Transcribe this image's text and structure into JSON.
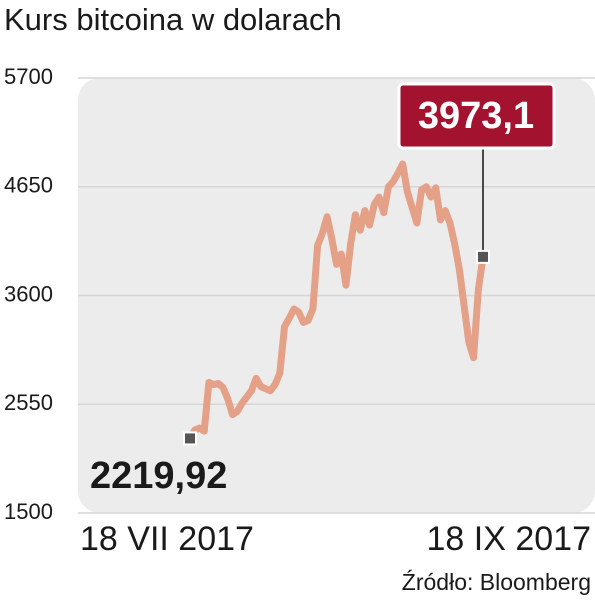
{
  "chart_data": {
    "type": "line",
    "title": "Kurs bitcoina w dolarach",
    "source": "Źródło: Bloomberg",
    "categories": [
      "18 VII 2017",
      null,
      null,
      null,
      null,
      null,
      null,
      null,
      null,
      null,
      null,
      null,
      null,
      null,
      null,
      null,
      null,
      null,
      null,
      null,
      null,
      null,
      null,
      null,
      null,
      null,
      null,
      null,
      null,
      null,
      null,
      null,
      null,
      null,
      null,
      null,
      null,
      null,
      null,
      null,
      null,
      null,
      null,
      null,
      null,
      null,
      null,
      null,
      null,
      null,
      null,
      null,
      null,
      null,
      null,
      null,
      null,
      null,
      null,
      null,
      null,
      null,
      "18 IX 2017"
    ],
    "series": [
      {
        "color": "#e5a088",
        "values": [
          2219.92,
          2300,
          2320,
          2290,
          2760,
          2740,
          2750,
          2710,
          2600,
          2450,
          2480,
          2560,
          2620,
          2680,
          2800,
          2720,
          2700,
          2680,
          2740,
          2850,
          3300,
          3380,
          3470,
          3440,
          3340,
          3360,
          3470,
          4080,
          4200,
          4360,
          4150,
          3900,
          4000,
          3700,
          4100,
          4380,
          4230,
          4420,
          4280,
          4480,
          4550,
          4400,
          4650,
          4700,
          4780,
          4870,
          4600,
          4450,
          4300,
          4620,
          4650,
          4550,
          4640,
          4330,
          4420,
          4300,
          4100,
          3850,
          3500,
          3150,
          3000,
          3650,
          3973.1
        ],
        "value_labels": [
          "2219,92",
          null,
          null,
          null,
          null,
          null,
          null,
          null,
          null,
          null,
          null,
          null,
          null,
          null,
          null,
          null,
          null,
          null,
          null,
          null,
          null,
          null,
          null,
          null,
          null,
          null,
          null,
          null,
          null,
          null,
          null,
          null,
          null,
          null,
          null,
          null,
          null,
          null,
          null,
          null,
          null,
          null,
          null,
          null,
          null,
          null,
          null,
          null,
          null,
          null,
          null,
          null,
          null,
          null,
          null,
          null,
          null,
          null,
          null,
          null,
          null,
          null,
          "3973,1"
        ]
      }
    ],
    "ylim": [
      1500,
      5700
    ],
    "yticks": [
      1500,
      2550,
      3600,
      4650,
      5700
    ],
    "grid": true
  }
}
